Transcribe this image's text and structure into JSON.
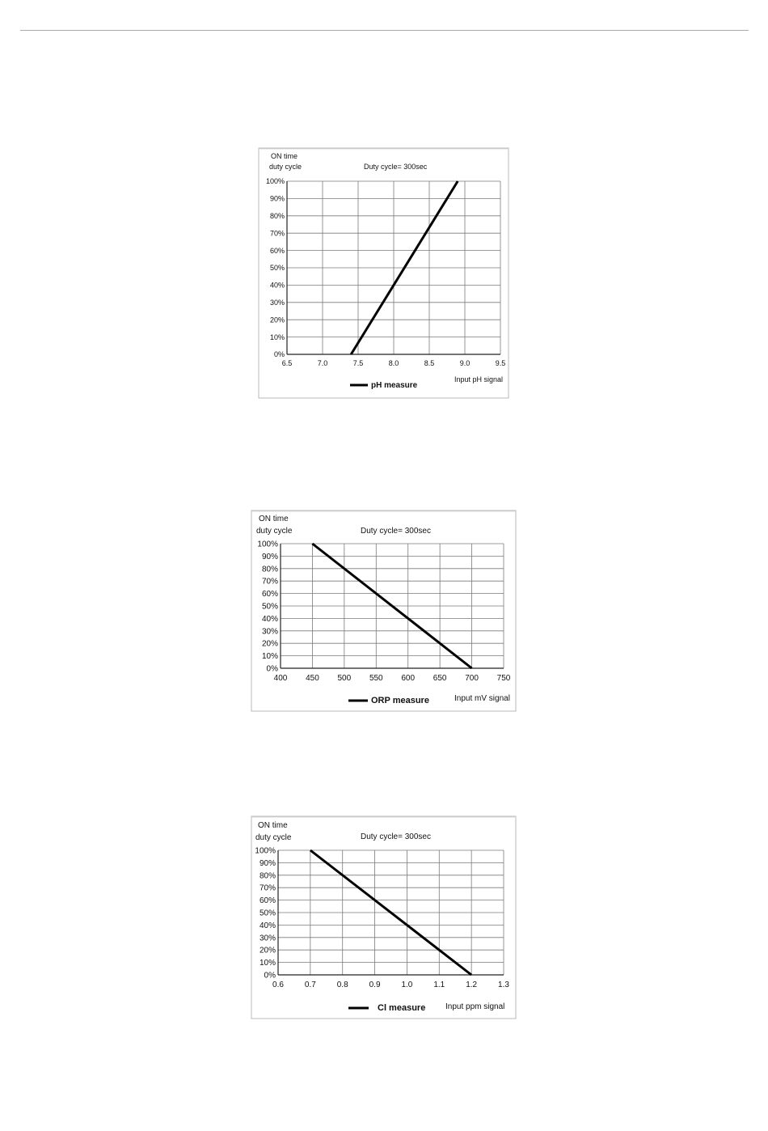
{
  "page": {
    "accent_color": "#8fb0d4"
  },
  "chart_data": [
    {
      "type": "line",
      "ylabel_line1": "ON time",
      "ylabel_line2": "duty cycle",
      "annotation": "Duty cycle= 300sec",
      "xlabel": "Input pH signal",
      "x_ticks": [
        "6.5",
        "7.0",
        "7.5",
        "8.0",
        "8.5",
        "9.0",
        "9.5"
      ],
      "y_ticks": [
        "0%",
        "10%",
        "20%",
        "30%",
        "40%",
        "50%",
        "60%",
        "70%",
        "80%",
        "90%",
        "100%"
      ],
      "xlim": [
        6.5,
        9.5
      ],
      "ylim": [
        0,
        100
      ],
      "grid": true,
      "legend_position": "bottom-center",
      "series": [
        {
          "name": "pH measure",
          "x": [
            7.4,
            8.9
          ],
          "y": [
            0,
            100
          ]
        }
      ]
    },
    {
      "type": "line",
      "ylabel_line1": "ON time",
      "ylabel_line2": "duty cycle",
      "annotation": "Duty cycle= 300sec",
      "xlabel": "Input mV signal",
      "x_ticks": [
        "400",
        "450",
        "500",
        "550",
        "600",
        "650",
        "700",
        "750"
      ],
      "y_ticks": [
        "0%",
        "10%",
        "20%",
        "30%",
        "40%",
        "50%",
        "60%",
        "70%",
        "80%",
        "90%",
        "100%"
      ],
      "xlim": [
        400,
        750
      ],
      "ylim": [
        0,
        100
      ],
      "grid": true,
      "legend_position": "bottom-center",
      "series": [
        {
          "name": "ORP measure",
          "x": [
            450,
            700
          ],
          "y": [
            100,
            0
          ]
        }
      ]
    },
    {
      "type": "line",
      "ylabel_line1": "ON time",
      "ylabel_line2": "duty cycle",
      "annotation": "Duty cycle= 300sec",
      "xlabel": "Input ppm signal",
      "x_ticks": [
        "0.6",
        "0.7",
        "0.8",
        "0.9",
        "1.0",
        "1.1",
        "1.2",
        "1.3"
      ],
      "y_ticks": [
        "0%",
        "10%",
        "20%",
        "30%",
        "40%",
        "50%",
        "60%",
        "70%",
        "80%",
        "90%",
        "100%"
      ],
      "xlim": [
        0.6,
        1.3
      ],
      "ylim": [
        0,
        100
      ],
      "grid": true,
      "legend_position": "bottom-center",
      "series": [
        {
          "name": "Cl measure",
          "x": [
            0.7,
            1.2
          ],
          "y": [
            100,
            0
          ]
        }
      ]
    }
  ]
}
